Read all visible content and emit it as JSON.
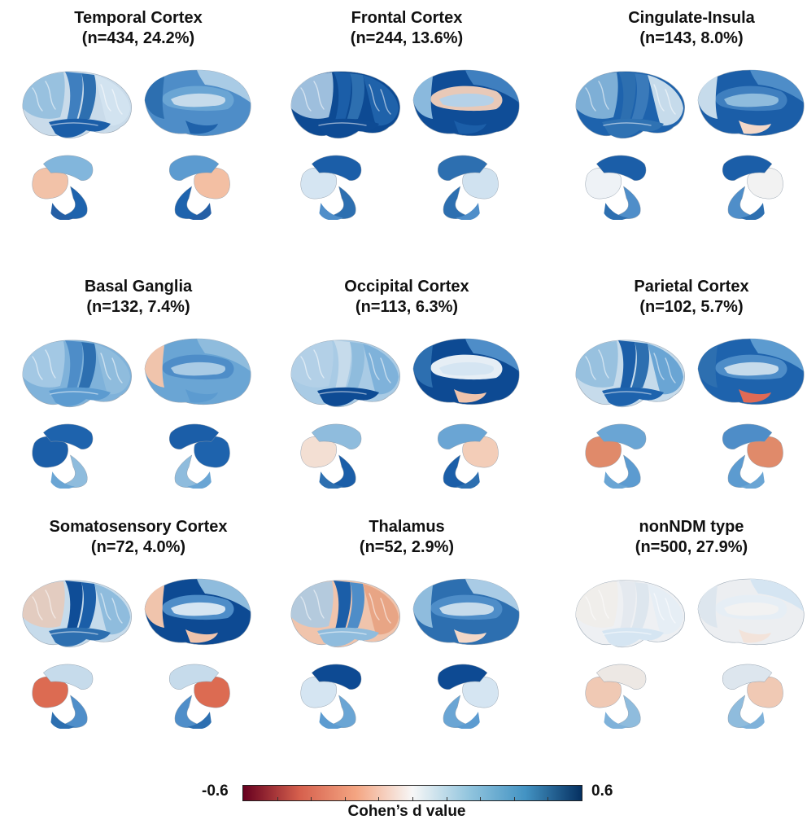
{
  "panels": [
    {
      "title": "Temporal Cortex",
      "subtitle": "(n=434, 24.2%)",
      "colors": {
        "lat": [
          "#c9dbea",
          "#3f7fbf",
          "#2d6fb0",
          "#8fbcdd",
          "#d2e3f0",
          "#1b5ea8"
        ],
        "med": [
          "#4e8dc8",
          "#c6dbeb",
          "#2d6fb0",
          "#6aa5d4",
          "#1f62aa",
          "#a9cbe5"
        ],
        "sub_left": [
          "#f2c2a8",
          "#82b6dc",
          "#1e63ad",
          "#255fa5"
        ],
        "sub_right": [
          "#5c9bd0",
          "#f3bfa3",
          "#1e63ad",
          "#255fa5"
        ]
      }
    },
    {
      "title": "Frontal Cortex",
      "subtitle": "(n=244, 13.6%)",
      "colors": {
        "lat": [
          "#0d4a93",
          "#1b5ea8",
          "#2d6fb0",
          "#b9d4ea",
          "#1f62aa",
          "#0e4b94"
        ],
        "med": [
          "#0f4d97",
          "#b5d1e8",
          "#8ab9dd",
          "#e8c9b8",
          "#1b5ea8",
          "#3f7fbf"
        ],
        "sub_left": [
          "#d5e5f2",
          "#1b5ea8",
          "#2d6fb0",
          "#4f8ec9"
        ],
        "sub_right": [
          "#2d6fb0",
          "#d0e2f0",
          "#2d6fb0",
          "#4f8ec9"
        ]
      }
    },
    {
      "title": "Cingulate-Insula",
      "subtitle": "(n=143, 8.0%)",
      "colors": {
        "lat": [
          "#1e63ad",
          "#2d6fb0",
          "#3a7aba",
          "#8fbcdd",
          "#c6dbeb",
          "#2f72b3"
        ],
        "med": [
          "#1b5ea8",
          "#8fbcdd",
          "#c6dbeb",
          "#3f7fbf",
          "#f3d8c8",
          "#4e8dc8"
        ],
        "sub_left": [
          "#eef2f6",
          "#1b5ea8",
          "#4f8ec9",
          "#2d6fb0"
        ],
        "sub_right": [
          "#1b5ea8",
          "#f2f2f2",
          "#4f8ec9",
          "#2d6fb0"
        ]
      }
    },
    {
      "title": "Basal Ganglia",
      "subtitle": "(n=132, 7.4%)",
      "colors": {
        "lat": [
          "#7fb2da",
          "#4e8dc8",
          "#2d6fb0",
          "#a9cbe5",
          "#8fbcdd",
          "#5c9bd0"
        ],
        "med": [
          "#6aa5d4",
          "#a9cbe5",
          "#f0c4ac",
          "#4e8dc8",
          "#5c9bd0",
          "#8fbcdd"
        ],
        "sub_left": [
          "#1b5ea8",
          "#1e63ad",
          "#8fbcdd",
          "#6aa5d4"
        ],
        "sub_right": [
          "#1b5ea8",
          "#1e63ad",
          "#8fbcdd",
          "#6aa5d4"
        ]
      }
    },
    {
      "title": "Occipital Cortex",
      "subtitle": "(n=113, 6.3%)",
      "colors": {
        "lat": [
          "#a9cbe5",
          "#c6dbeb",
          "#8fbcdd",
          "#b5d1e8",
          "#7fb2da",
          "#0e4b94"
        ],
        "med": [
          "#0d4a93",
          "#d5e5f2",
          "#2d6fb0",
          "#e6eef5",
          "#f0c4ac",
          "#4e8dc8"
        ],
        "sub_left": [
          "#f3dfd3",
          "#8fbcdd",
          "#1b5ea8",
          "#2d6fb0"
        ],
        "sub_right": [
          "#6aa5d4",
          "#f3cdb8",
          "#1b5ea8",
          "#2d6fb0"
        ]
      }
    },
    {
      "title": "Parietal Cortex",
      "subtitle": "(n=102, 5.7%)",
      "colors": {
        "lat": [
          "#c6dbeb",
          "#1b5ea8",
          "#2d6fb0",
          "#8fbcdd",
          "#6aa5d4",
          "#1e63ad"
        ],
        "med": [
          "#1e63ad",
          "#c6dbeb",
          "#2d6fb0",
          "#4e8dc8",
          "#e06a55",
          "#5c9bd0"
        ],
        "sub_left": [
          "#e08a6a",
          "#6aa5d4",
          "#5c9bd0",
          "#6aa5d4"
        ],
        "sub_right": [
          "#4e8dc8",
          "#e08a6a",
          "#5c9bd0",
          "#6aa5d4"
        ]
      }
    },
    {
      "title": "Somatosensory Cortex",
      "subtitle": "(n=72, 4.0%)",
      "colors": {
        "lat": [
          "#c6dbeb",
          "#0f4d97",
          "#1b5ea8",
          "#e8c9b8",
          "#8fbcdd",
          "#2d6fb0"
        ],
        "med": [
          "#0d4a93",
          "#d5e5f2",
          "#f0c4ac",
          "#4e8dc8",
          "#f0c4ac",
          "#8fbcdd"
        ],
        "sub_left": [
          "#dc6b52",
          "#c6dbeb",
          "#4f8ec9",
          "#2d6fb0"
        ],
        "sub_right": [
          "#c6dbeb",
          "#dc6b52",
          "#4f8ec9",
          "#2d6fb0"
        ]
      }
    },
    {
      "title": "Thalamus",
      "subtitle": "(n=52, 2.9%)",
      "colors": {
        "lat": [
          "#f0c4ac",
          "#1b5ea8",
          "#4e8dc8",
          "#a9cbe5",
          "#e8a585",
          "#8fbcdd"
        ],
        "med": [
          "#2d6fb0",
          "#c6dbeb",
          "#8fbcdd",
          "#4e8dc8",
          "#f3d8c8",
          "#a9cbe5"
        ],
        "sub_left": [
          "#d5e5f2",
          "#0d4a93",
          "#6aa5d4",
          "#5c9bd0"
        ],
        "sub_right": [
          "#0d4a93",
          "#d5e5f2",
          "#6aa5d4",
          "#5c9bd0"
        ]
      }
    },
    {
      "title": "nonNDM type",
      "subtitle": "(n=500, 27.9%)",
      "colors": {
        "lat": [
          "#eef0f3",
          "#e4e9ef",
          "#dde6ee",
          "#f0ede9",
          "#e6eef5",
          "#d5e5f2"
        ],
        "med": [
          "#eceef1",
          "#f2f2f2",
          "#dde6ee",
          "#e6eef5",
          "#f3e3da",
          "#d5e5f2"
        ],
        "sub_left": [
          "#f0c9b4",
          "#ede8e4",
          "#8fbcdd",
          "#7fb2da"
        ],
        "sub_right": [
          "#dde6ee",
          "#f0c9b4",
          "#8fbcdd",
          "#7fb2da"
        ]
      }
    }
  ],
  "colorbar": {
    "min_label": "-0.6",
    "max_label": "0.6",
    "label": "Cohen’s d value",
    "colors": [
      "#67001f",
      "#d6604d",
      "#f4a582",
      "#f7f7f7",
      "#92c5de",
      "#4393c3",
      "#053061"
    ]
  }
}
